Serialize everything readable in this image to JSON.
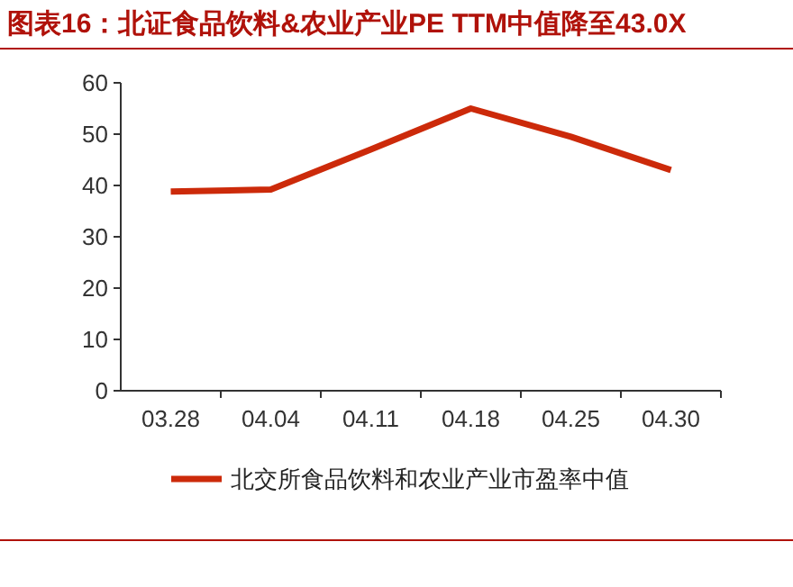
{
  "chart_data": {
    "type": "line",
    "title": "图表16：北证食品饮料&农业产业PE TTM中值降至43.0X",
    "categories": [
      "03.28",
      "04.04",
      "04.11",
      "04.18",
      "04.25",
      "04.30"
    ],
    "series": [
      {
        "name": "北交所食品饮料和农业产业市盈率中值",
        "color": "#cc2a0a",
        "values": [
          38.8,
          39.2,
          47,
          55,
          49.5,
          43
        ]
      }
    ],
    "ylim": [
      0,
      60
    ],
    "yticks": [
      0,
      10,
      20,
      30,
      40,
      50,
      60
    ],
    "grid": false,
    "legend": "bottom",
    "marker": "none",
    "line_style": "solid"
  }
}
